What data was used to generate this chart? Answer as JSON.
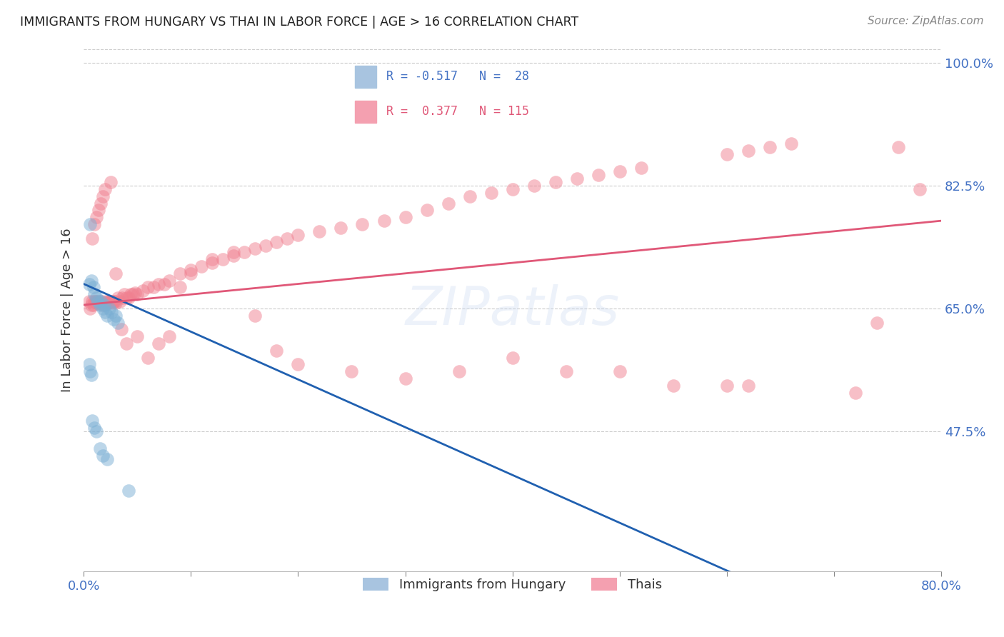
{
  "title": "IMMIGRANTS FROM HUNGARY VS THAI IN LABOR FORCE | AGE > 16 CORRELATION CHART",
  "source": "Source: ZipAtlas.com",
  "ylabel": "In Labor Force | Age > 16",
  "xlim": [
    0.0,
    0.8
  ],
  "ylim": [
    0.275,
    1.02
  ],
  "ytick_vals": [
    0.475,
    0.65,
    0.825,
    1.0
  ],
  "ytick_labels": [
    "47.5%",
    "65.0%",
    "82.5%",
    "100.0%"
  ],
  "xtick_vals": [
    0.0,
    0.1,
    0.2,
    0.3,
    0.4,
    0.5,
    0.6,
    0.7,
    0.8
  ],
  "xtick_labels": [
    "0.0%",
    "",
    "",
    "",
    "",
    "",
    "",
    "",
    "80.0%"
  ],
  "hungary_color": "#7bafd4",
  "thai_color": "#f08090",
  "hungary_line_color": "#2060b0",
  "thai_line_color": "#e05878",
  "watermark": "ZIPatlas",
  "hungary_x": [
    0.005,
    0.007,
    0.009,
    0.01,
    0.012,
    0.013,
    0.015,
    0.016,
    0.018,
    0.019,
    0.02,
    0.022,
    0.024,
    0.026,
    0.028,
    0.03,
    0.032,
    0.005,
    0.006,
    0.007,
    0.008,
    0.01,
    0.012,
    0.015,
    0.018,
    0.022,
    0.042,
    0.006
  ],
  "hungary_y": [
    0.685,
    0.69,
    0.68,
    0.67,
    0.665,
    0.66,
    0.655,
    0.66,
    0.65,
    0.655,
    0.645,
    0.64,
    0.65,
    0.645,
    0.635,
    0.64,
    0.63,
    0.57,
    0.56,
    0.555,
    0.49,
    0.48,
    0.475,
    0.45,
    0.44,
    0.435,
    0.39,
    0.77
  ],
  "thai_x": [
    0.005,
    0.006,
    0.007,
    0.008,
    0.009,
    0.01,
    0.011,
    0.012,
    0.013,
    0.014,
    0.015,
    0.016,
    0.017,
    0.018,
    0.019,
    0.02,
    0.021,
    0.022,
    0.023,
    0.024,
    0.025,
    0.026,
    0.027,
    0.028,
    0.029,
    0.03,
    0.032,
    0.034,
    0.036,
    0.038,
    0.04,
    0.042,
    0.044,
    0.046,
    0.048,
    0.05,
    0.055,
    0.06,
    0.065,
    0.07,
    0.075,
    0.08,
    0.09,
    0.1,
    0.11,
    0.12,
    0.13,
    0.14,
    0.15,
    0.16,
    0.17,
    0.18,
    0.19,
    0.2,
    0.22,
    0.24,
    0.26,
    0.28,
    0.3,
    0.32,
    0.34,
    0.36,
    0.38,
    0.4,
    0.42,
    0.44,
    0.46,
    0.48,
    0.5,
    0.52,
    0.6,
    0.62,
    0.64,
    0.66,
    0.008,
    0.01,
    0.012,
    0.014,
    0.016,
    0.018,
    0.02,
    0.025,
    0.03,
    0.035,
    0.04,
    0.05,
    0.06,
    0.07,
    0.08,
    0.09,
    0.1,
    0.12,
    0.14,
    0.16,
    0.18,
    0.2,
    0.25,
    0.3,
    0.35,
    0.4,
    0.45,
    0.5,
    0.55,
    0.6,
    0.62,
    0.72,
    0.74,
    0.76,
    0.78
  ],
  "thai_y": [
    0.66,
    0.65,
    0.655,
    0.66,
    0.655,
    0.66,
    0.66,
    0.66,
    0.658,
    0.657,
    0.66,
    0.658,
    0.66,
    0.655,
    0.658,
    0.655,
    0.66,
    0.658,
    0.658,
    0.66,
    0.66,
    0.66,
    0.658,
    0.66,
    0.66,
    0.658,
    0.665,
    0.66,
    0.665,
    0.67,
    0.665,
    0.665,
    0.67,
    0.67,
    0.672,
    0.67,
    0.675,
    0.68,
    0.68,
    0.685,
    0.685,
    0.69,
    0.7,
    0.705,
    0.71,
    0.715,
    0.72,
    0.725,
    0.73,
    0.735,
    0.74,
    0.745,
    0.75,
    0.755,
    0.76,
    0.765,
    0.77,
    0.775,
    0.78,
    0.79,
    0.8,
    0.81,
    0.815,
    0.82,
    0.825,
    0.83,
    0.835,
    0.84,
    0.845,
    0.85,
    0.87,
    0.875,
    0.88,
    0.885,
    0.75,
    0.77,
    0.78,
    0.79,
    0.8,
    0.81,
    0.82,
    0.83,
    0.7,
    0.62,
    0.6,
    0.61,
    0.58,
    0.6,
    0.61,
    0.68,
    0.7,
    0.72,
    0.73,
    0.64,
    0.59,
    0.57,
    0.56,
    0.55,
    0.56,
    0.58,
    0.56,
    0.56,
    0.54,
    0.54,
    0.54,
    0.53,
    0.63,
    0.88,
    0.82
  ]
}
